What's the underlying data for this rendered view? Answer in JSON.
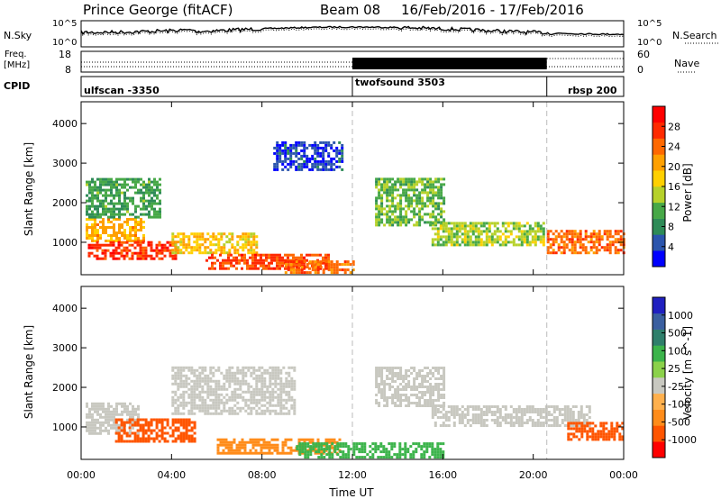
{
  "header": {
    "radar_name": "Prince George (fitACF)",
    "beam": "Beam 08",
    "date_range": "16/Feb/2016 - 17/Feb/2016"
  },
  "strip_noise": {
    "left_label": "N.Sky",
    "left_ticks": [
      "10^5",
      "10^0"
    ],
    "right_label": "N.Search",
    "right_ticks": [
      "10^5",
      "10^0"
    ],
    "line_style": "dotted"
  },
  "strip_freq": {
    "left_label_top": "Freq.",
    "left_label_bottom": "[MHz]",
    "left_ticks": [
      "18",
      "8"
    ],
    "right_label": "Nave",
    "right_ticks": [
      "60",
      "0"
    ],
    "line_style": "dotted"
  },
  "strip_cpid": {
    "label": "CPID",
    "segments": [
      {
        "name": "ulfscan -3350",
        "start_hour": 0,
        "end_hour": 12
      },
      {
        "name": "twofsound 3503",
        "start_hour": 12,
        "end_hour": 20.6
      },
      {
        "name": "rbsp 200",
        "start_hour": 20.6,
        "end_hour": 24
      }
    ]
  },
  "x_axis": {
    "title": "Time UT",
    "ticks": [
      "00:00",
      "04:00",
      "08:00",
      "12:00",
      "16:00",
      "20:00",
      "00:00"
    ]
  },
  "colors": {
    "power_scale": [
      "#0000ff",
      "#2b55ad",
      "#2e8b57",
      "#47a847",
      "#b6d12a",
      "#ffd000",
      "#ffa000",
      "#ff6800",
      "#ff2a00",
      "#ff0000"
    ],
    "velocity_scale": [
      "#ff0000",
      "#ff5500",
      "#ff8c1a",
      "#ffb04d",
      "#c8c8c0",
      "#8bd14a",
      "#3cb44b",
      "#2f7f6b",
      "#3a5fa0",
      "#2020c0"
    ]
  },
  "chart_data": [
    {
      "type": "heatmap",
      "title": "Power",
      "ylabel": "Slant Range [km]",
      "yticks": [
        "1000",
        "2000",
        "3000",
        "4000"
      ],
      "ylim": [
        180,
        4550
      ],
      "xlim_hours": [
        0,
        24
      ],
      "colorbar": {
        "label": "Power [dB]",
        "ticks": [
          "4",
          "8",
          "12",
          "16",
          "20",
          "24",
          "28"
        ],
        "range": [
          0,
          32
        ]
      },
      "regions": [
        {
          "x": [
            0.2,
            2.8
          ],
          "y": [
            1000,
            1600
          ],
          "value": 20
        },
        {
          "x": [
            0.3,
            4.2
          ],
          "y": [
            550,
            1000
          ],
          "value": 27
        },
        {
          "x": [
            0.2,
            3.5
          ],
          "y": [
            1600,
            2600
          ],
          "value": 10
        },
        {
          "x": [
            4.0,
            7.8
          ],
          "y": [
            700,
            1200
          ],
          "value": 18
        },
        {
          "x": [
            5.5,
            11.0
          ],
          "y": [
            300,
            700
          ],
          "value": 26
        },
        {
          "x": [
            9.0,
            12.0
          ],
          "y": [
            200,
            500
          ],
          "value": 24
        },
        {
          "x": [
            8.5,
            11.5
          ],
          "y": [
            2800,
            3550
          ],
          "value": 4
        },
        {
          "x": [
            13.0,
            16.0
          ],
          "y": [
            1400,
            2600
          ],
          "value": 12
        },
        {
          "x": [
            15.5,
            20.5
          ],
          "y": [
            900,
            1500
          ],
          "value": 14
        },
        {
          "x": [
            20.6,
            24.0
          ],
          "y": [
            700,
            1300
          ],
          "value": 24
        }
      ]
    },
    {
      "type": "heatmap",
      "title": "Velocity",
      "ylabel": "Slant Range [km]",
      "yticks": [
        "1000",
        "2000",
        "3000",
        "4000"
      ],
      "ylim": [
        180,
        4550
      ],
      "xlim_hours": [
        0,
        24
      ],
      "colorbar": {
        "label": "Velocity [m s^-1]",
        "ticks": [
          "-1000",
          "-500",
          "-100",
          "-25",
          "25",
          "100",
          "500",
          "1000"
        ]
      },
      "regions": [
        {
          "x": [
            0.2,
            2.5
          ],
          "y": [
            800,
            1600
          ],
          "value": 0
        },
        {
          "x": [
            1.5,
            5.0
          ],
          "y": [
            600,
            1200
          ],
          "value": -500
        },
        {
          "x": [
            4.0,
            9.5
          ],
          "y": [
            1300,
            2500
          ],
          "value": 0
        },
        {
          "x": [
            6.0,
            11.5
          ],
          "y": [
            300,
            700
          ],
          "value": -100
        },
        {
          "x": [
            9.5,
            16.0
          ],
          "y": [
            200,
            600
          ],
          "value": 100
        },
        {
          "x": [
            13.0,
            16.0
          ],
          "y": [
            1500,
            2500
          ],
          "value": 0
        },
        {
          "x": [
            15.5,
            22.5
          ],
          "y": [
            1000,
            1500
          ],
          "value": 0
        },
        {
          "x": [
            21.5,
            24.0
          ],
          "y": [
            650,
            1100
          ],
          "value": -500
        }
      ]
    }
  ]
}
